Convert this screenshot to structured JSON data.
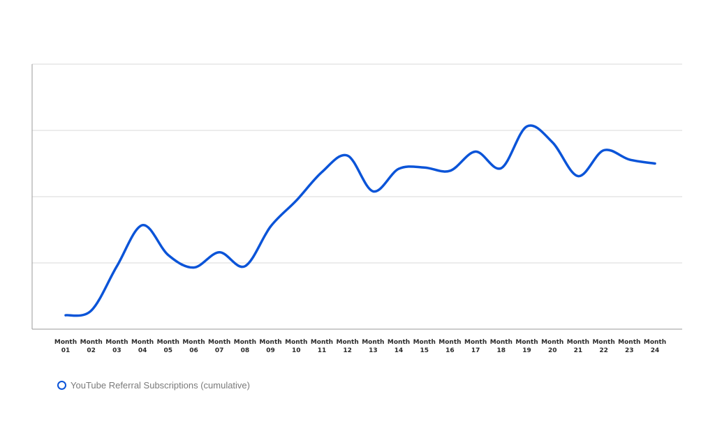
{
  "chart_data": {
    "type": "line",
    "title": "",
    "xlabel": "",
    "ylabel": "",
    "categories": [
      [
        "Month",
        "01"
      ],
      [
        "Month",
        "02"
      ],
      [
        "Month",
        "03"
      ],
      [
        "Month",
        "04"
      ],
      [
        "Month",
        "05"
      ],
      [
        "Month",
        "06"
      ],
      [
        "Month",
        "07"
      ],
      [
        "Month",
        "08"
      ],
      [
        "Month",
        "09"
      ],
      [
        "Month",
        "10"
      ],
      [
        "Month",
        "11"
      ],
      [
        "Month",
        "12"
      ],
      [
        "Month",
        "13"
      ],
      [
        "Month",
        "14"
      ],
      [
        "Month",
        "15"
      ],
      [
        "Month",
        "16"
      ],
      [
        "Month",
        "17"
      ],
      [
        "Month",
        "18"
      ],
      [
        "Month",
        "19"
      ],
      [
        "Month",
        "20"
      ],
      [
        "Month",
        "21"
      ],
      [
        "Month",
        "22"
      ],
      [
        "Month",
        "23"
      ],
      [
        "Month",
        "24"
      ]
    ],
    "ylim": [
      0,
      4
    ],
    "y_gridlines": [
      1,
      2,
      3,
      4
    ],
    "y_tick_labels_shown": false,
    "grid": true,
    "legend_position": "bottom-left",
    "series": [
      {
        "name": "YouTube Referral Subscriptions (cumulative)",
        "color": "#0b54d8",
        "values": [
          0.21,
          0.28,
          0.95,
          1.57,
          1.12,
          0.93,
          1.16,
          0.95,
          1.55,
          1.94,
          2.37,
          2.62,
          2.08,
          2.42,
          2.44,
          2.39,
          2.68,
          2.43,
          3.06,
          2.82,
          2.31,
          2.7,
          2.56,
          2.5
        ]
      }
    ]
  }
}
